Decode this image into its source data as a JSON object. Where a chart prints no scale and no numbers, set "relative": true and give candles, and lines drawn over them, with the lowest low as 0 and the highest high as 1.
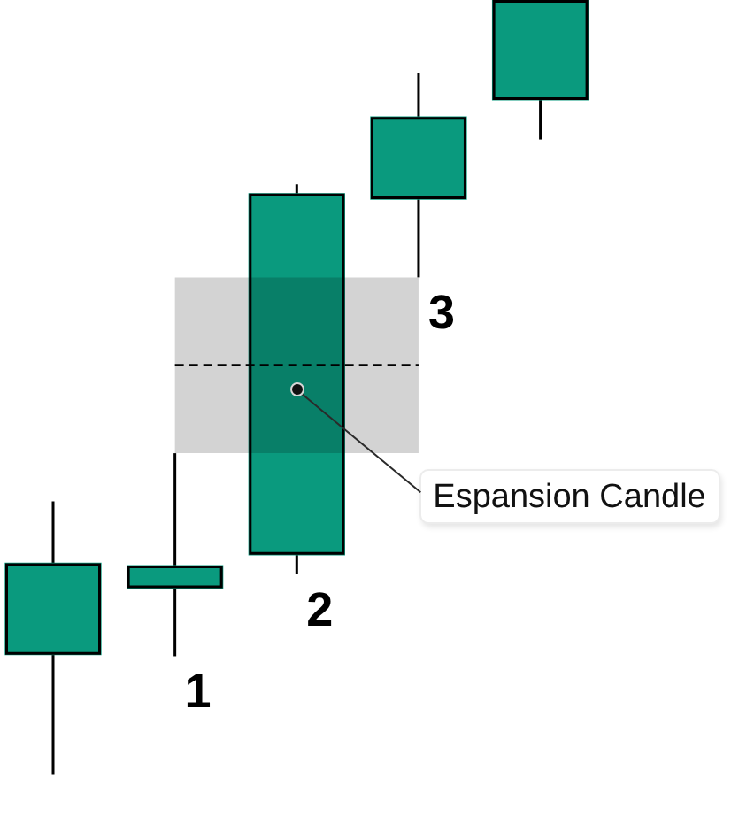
{
  "chart_data": {
    "type": "candlestick",
    "relative": true,
    "categories": [
      null,
      null,
      null,
      null,
      null
    ],
    "ohlc": [
      [
        0.155,
        0.353,
        0,
        0.273
      ],
      [
        0.241,
        0.415,
        0.153,
        0.27
      ],
      [
        0.284,
        0.762,
        0.259,
        0.75
      ],
      [
        0.743,
        0.906,
        0.642,
        0.849
      ],
      [
        0.871,
        1,
        0.82,
        1
      ]
    ],
    "color": "#0a9a7e",
    "bands": [
      {
        "axis": "y",
        "from": 0.415,
        "to": 0.642,
        "color": "#d3d3d3"
      }
    ],
    "ref_lines": [
      {
        "axis": "y",
        "value": 0.529,
        "color": "#000000",
        "line_style": "dashed"
      }
    ],
    "annotations": [
      "1",
      "2",
      "3",
      "Espansion Candle"
    ]
  }
}
